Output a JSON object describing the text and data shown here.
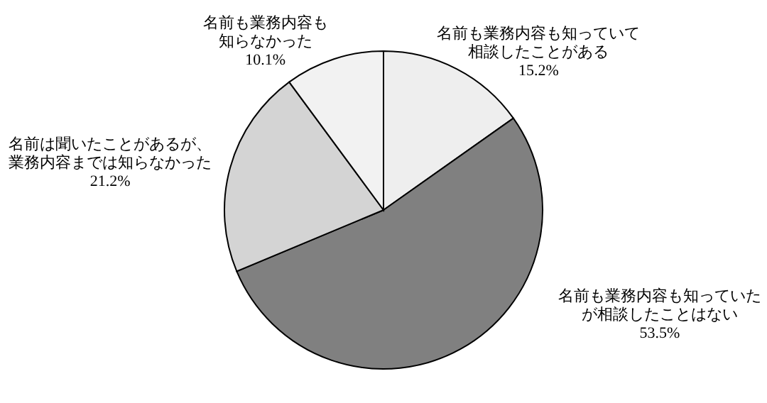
{
  "chart_data": {
    "type": "pie",
    "categories": [
      "名前も業務内容も知っていて相談したことがある",
      "名前も業務内容も知っていたが相談したことはない",
      "名前は聞いたことがあるが、業務内容までは知らなかった",
      "名前も業務内容も知らなかった"
    ],
    "values": [
      15.2,
      53.5,
      21.2,
      10.1
    ],
    "value_labels": [
      "15.2%",
      "53.5%",
      "21.2%",
      "10.1%"
    ],
    "colors": [
      "#eeeeee",
      "#808080",
      "#d4d4d4",
      "#f2f2f2"
    ]
  }
}
